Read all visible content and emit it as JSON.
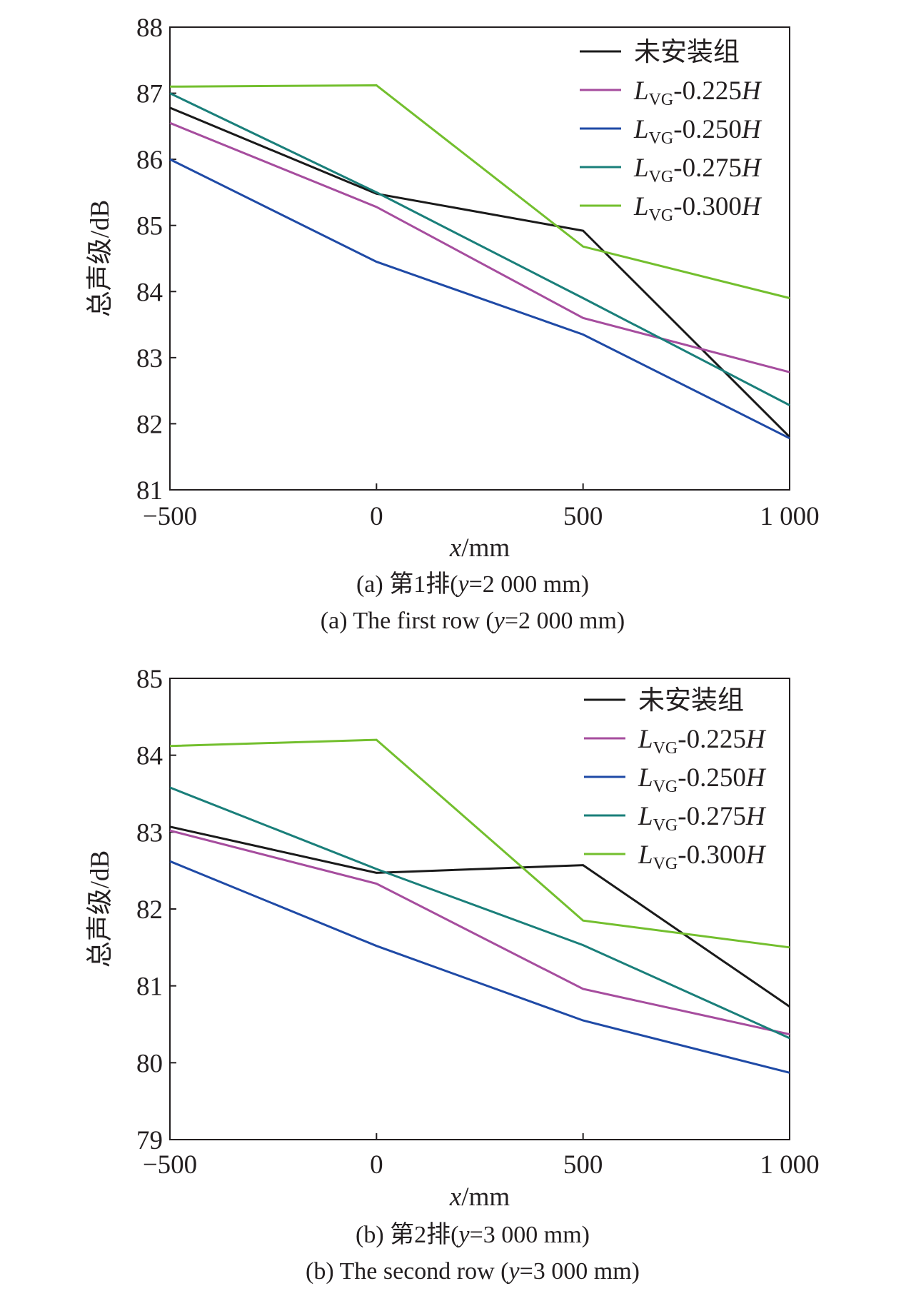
{
  "chart_data": [
    {
      "type": "line",
      "x": [
        -500,
        0,
        500,
        1000
      ],
      "xticks": [
        "−500",
        "0",
        "500",
        "1 000"
      ],
      "xlim": [
        -500,
        1000
      ],
      "ylim": [
        81,
        88
      ],
      "yticks": [
        "81",
        "82",
        "83",
        "84",
        "85",
        "86",
        "87",
        "88"
      ],
      "xlabel": {
        "var": "x",
        "unit": "/mm"
      },
      "ylabel": "总声级/dB",
      "legend_position": "top-right",
      "caption_cn": {
        "prefix": "(a) 第1排(",
        "var": "y",
        "suffix": "=2 000 mm)"
      },
      "caption_en": {
        "prefix": "(a) The first row (",
        "var": "y",
        "suffix": "=2 000 mm)"
      },
      "series": [
        {
          "name": "未安装组",
          "label_main": "未安装组",
          "label_sub": "",
          "label_tail": "",
          "label_var": "",
          "color": "#1a1a1a",
          "values": [
            86.78,
            85.48,
            84.92,
            81.8
          ]
        },
        {
          "name": "LVG-0.225H",
          "label_main": "L",
          "label_sub": "VG",
          "label_tail": "-0.225",
          "label_var": "H",
          "color": "#a64d9e",
          "values": [
            86.55,
            85.28,
            83.6,
            82.78
          ]
        },
        {
          "name": "LVG-0.250H",
          "label_main": "L",
          "label_sub": "VG",
          "label_tail": "-0.250",
          "label_var": "H",
          "color": "#1f4aa6",
          "values": [
            86.0,
            84.45,
            83.35,
            81.78
          ]
        },
        {
          "name": "LVG-0.275H",
          "label_main": "L",
          "label_sub": "VG",
          "label_tail": "-0.275",
          "label_var": "H",
          "color": "#1a7f7a",
          "values": [
            87.0,
            85.5,
            83.9,
            82.28
          ]
        },
        {
          "name": "LVG-0.300H",
          "label_main": "L",
          "label_sub": "VG",
          "label_tail": "-0.300",
          "label_var": "H",
          "color": "#73bf2e",
          "values": [
            87.1,
            87.12,
            84.68,
            83.9
          ]
        }
      ]
    },
    {
      "type": "line",
      "x": [
        -500,
        0,
        500,
        1000
      ],
      "xticks": [
        "−500",
        "0",
        "500",
        "1 000"
      ],
      "xlim": [
        -500,
        1000
      ],
      "ylim": [
        79,
        85
      ],
      "yticks": [
        "79",
        "80",
        "81",
        "82",
        "83",
        "84",
        "85"
      ],
      "xlabel": {
        "var": "x",
        "unit": "/mm"
      },
      "ylabel": "总声级/dB",
      "legend_position": "top-right",
      "caption_cn": {
        "prefix": "(b) 第2排(",
        "var": "y",
        "suffix": "=3 000 mm)"
      },
      "caption_en": {
        "prefix": "(b) The second row (",
        "var": "y",
        "suffix": "=3 000 mm)"
      },
      "series": [
        {
          "name": "未安装组",
          "label_main": "未安装组",
          "label_sub": "",
          "label_tail": "",
          "label_var": "",
          "color": "#1a1a1a",
          "values": [
            83.07,
            82.47,
            82.57,
            80.73
          ]
        },
        {
          "name": "LVG-0.225H",
          "label_main": "L",
          "label_sub": "VG",
          "label_tail": "-0.225",
          "label_var": "H",
          "color": "#a64d9e",
          "values": [
            83.02,
            82.33,
            80.96,
            80.37
          ]
        },
        {
          "name": "LVG-0.250H",
          "label_main": "L",
          "label_sub": "VG",
          "label_tail": "-0.250",
          "label_var": "H",
          "color": "#1f4aa6",
          "values": [
            82.62,
            81.52,
            80.55,
            79.87
          ]
        },
        {
          "name": "LVG-0.275H",
          "label_main": "L",
          "label_sub": "VG",
          "label_tail": "-0.275",
          "label_var": "H",
          "color": "#1a7f7a",
          "values": [
            83.58,
            82.52,
            81.53,
            80.32
          ]
        },
        {
          "name": "LVG-0.300H",
          "label_main": "L",
          "label_sub": "VG",
          "label_tail": "-0.300",
          "label_var": "H",
          "color": "#73bf2e",
          "values": [
            84.12,
            84.2,
            81.85,
            81.5
          ]
        }
      ]
    }
  ]
}
